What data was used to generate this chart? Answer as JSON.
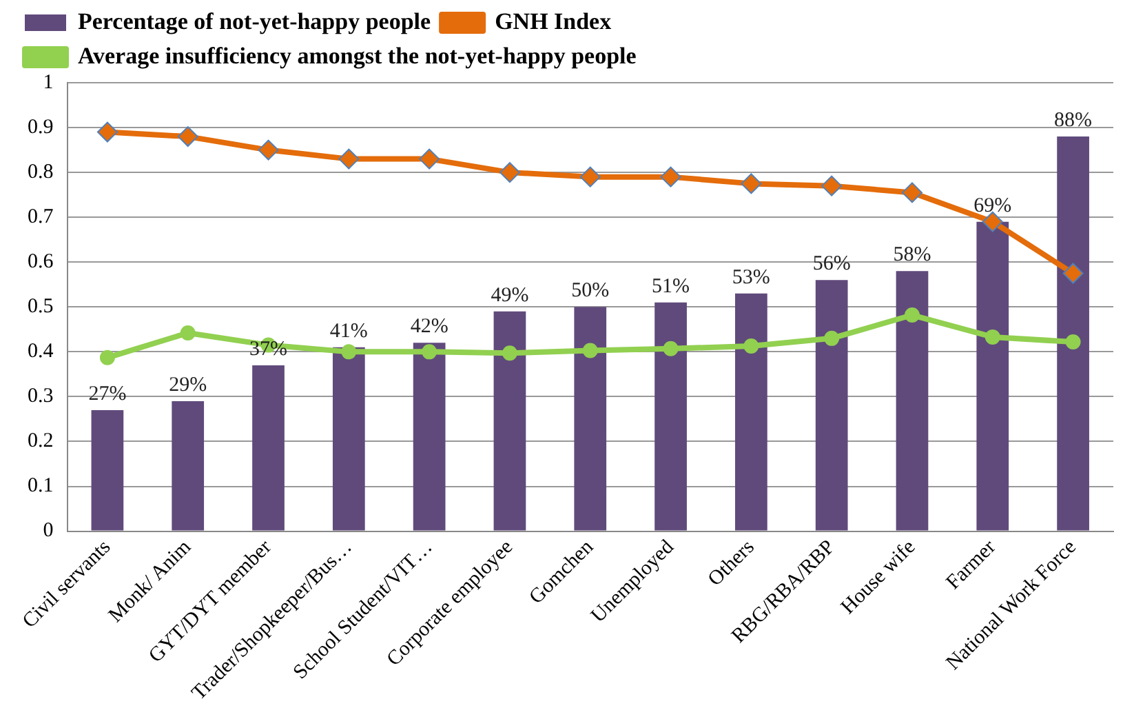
{
  "chart_data": {
    "type": "bar",
    "categories": [
      "Civil servants",
      "Monk/ Anim",
      "GYT/DYT member",
      "Trader/Shopkeeper/Bus…",
      "School Student/VIT…",
      "Corporate employee",
      "Gomchen",
      "Unemployed",
      "Others",
      "RBG/RBA/RBP",
      "House wife",
      "Farmer",
      "National Work Force"
    ],
    "series": [
      {
        "name": "Percentage of not-yet-happy people",
        "color": "#604a7b",
        "values": [
          0.27,
          0.29,
          0.37,
          0.41,
          0.42,
          0.49,
          0.5,
          0.51,
          0.53,
          0.56,
          0.58,
          0.69,
          0.88
        ],
        "value_labels": [
          "27%",
          "29%",
          "37%",
          "41%",
          "42%",
          "49%",
          "50%",
          "51%",
          "53%",
          "56%",
          "58%",
          "69%",
          "88%"
        ]
      },
      {
        "name": "GNH Index",
        "type": "line",
        "color": "#e46c0a",
        "marker": "diamond",
        "values": [
          0.89,
          0.88,
          0.85,
          0.83,
          0.83,
          0.8,
          0.79,
          0.79,
          0.775,
          0.77,
          0.755,
          0.69,
          0.575
        ]
      },
      {
        "name": "Average insufficiency amongst the not-yet-happy people",
        "type": "line",
        "color": "#92d050",
        "marker": "circle",
        "values": [
          0.387,
          0.442,
          0.415,
          0.4,
          0.4,
          0.397,
          0.403,
          0.407,
          0.413,
          0.43,
          0.482,
          0.433,
          0.422
        ]
      }
    ],
    "ylim": [
      0,
      1
    ],
    "yticks": [
      0,
      0.1,
      0.2,
      0.3,
      0.4,
      0.5,
      0.6,
      0.7,
      0.8,
      0.9,
      1
    ],
    "grid": "y",
    "legend": "top"
  }
}
